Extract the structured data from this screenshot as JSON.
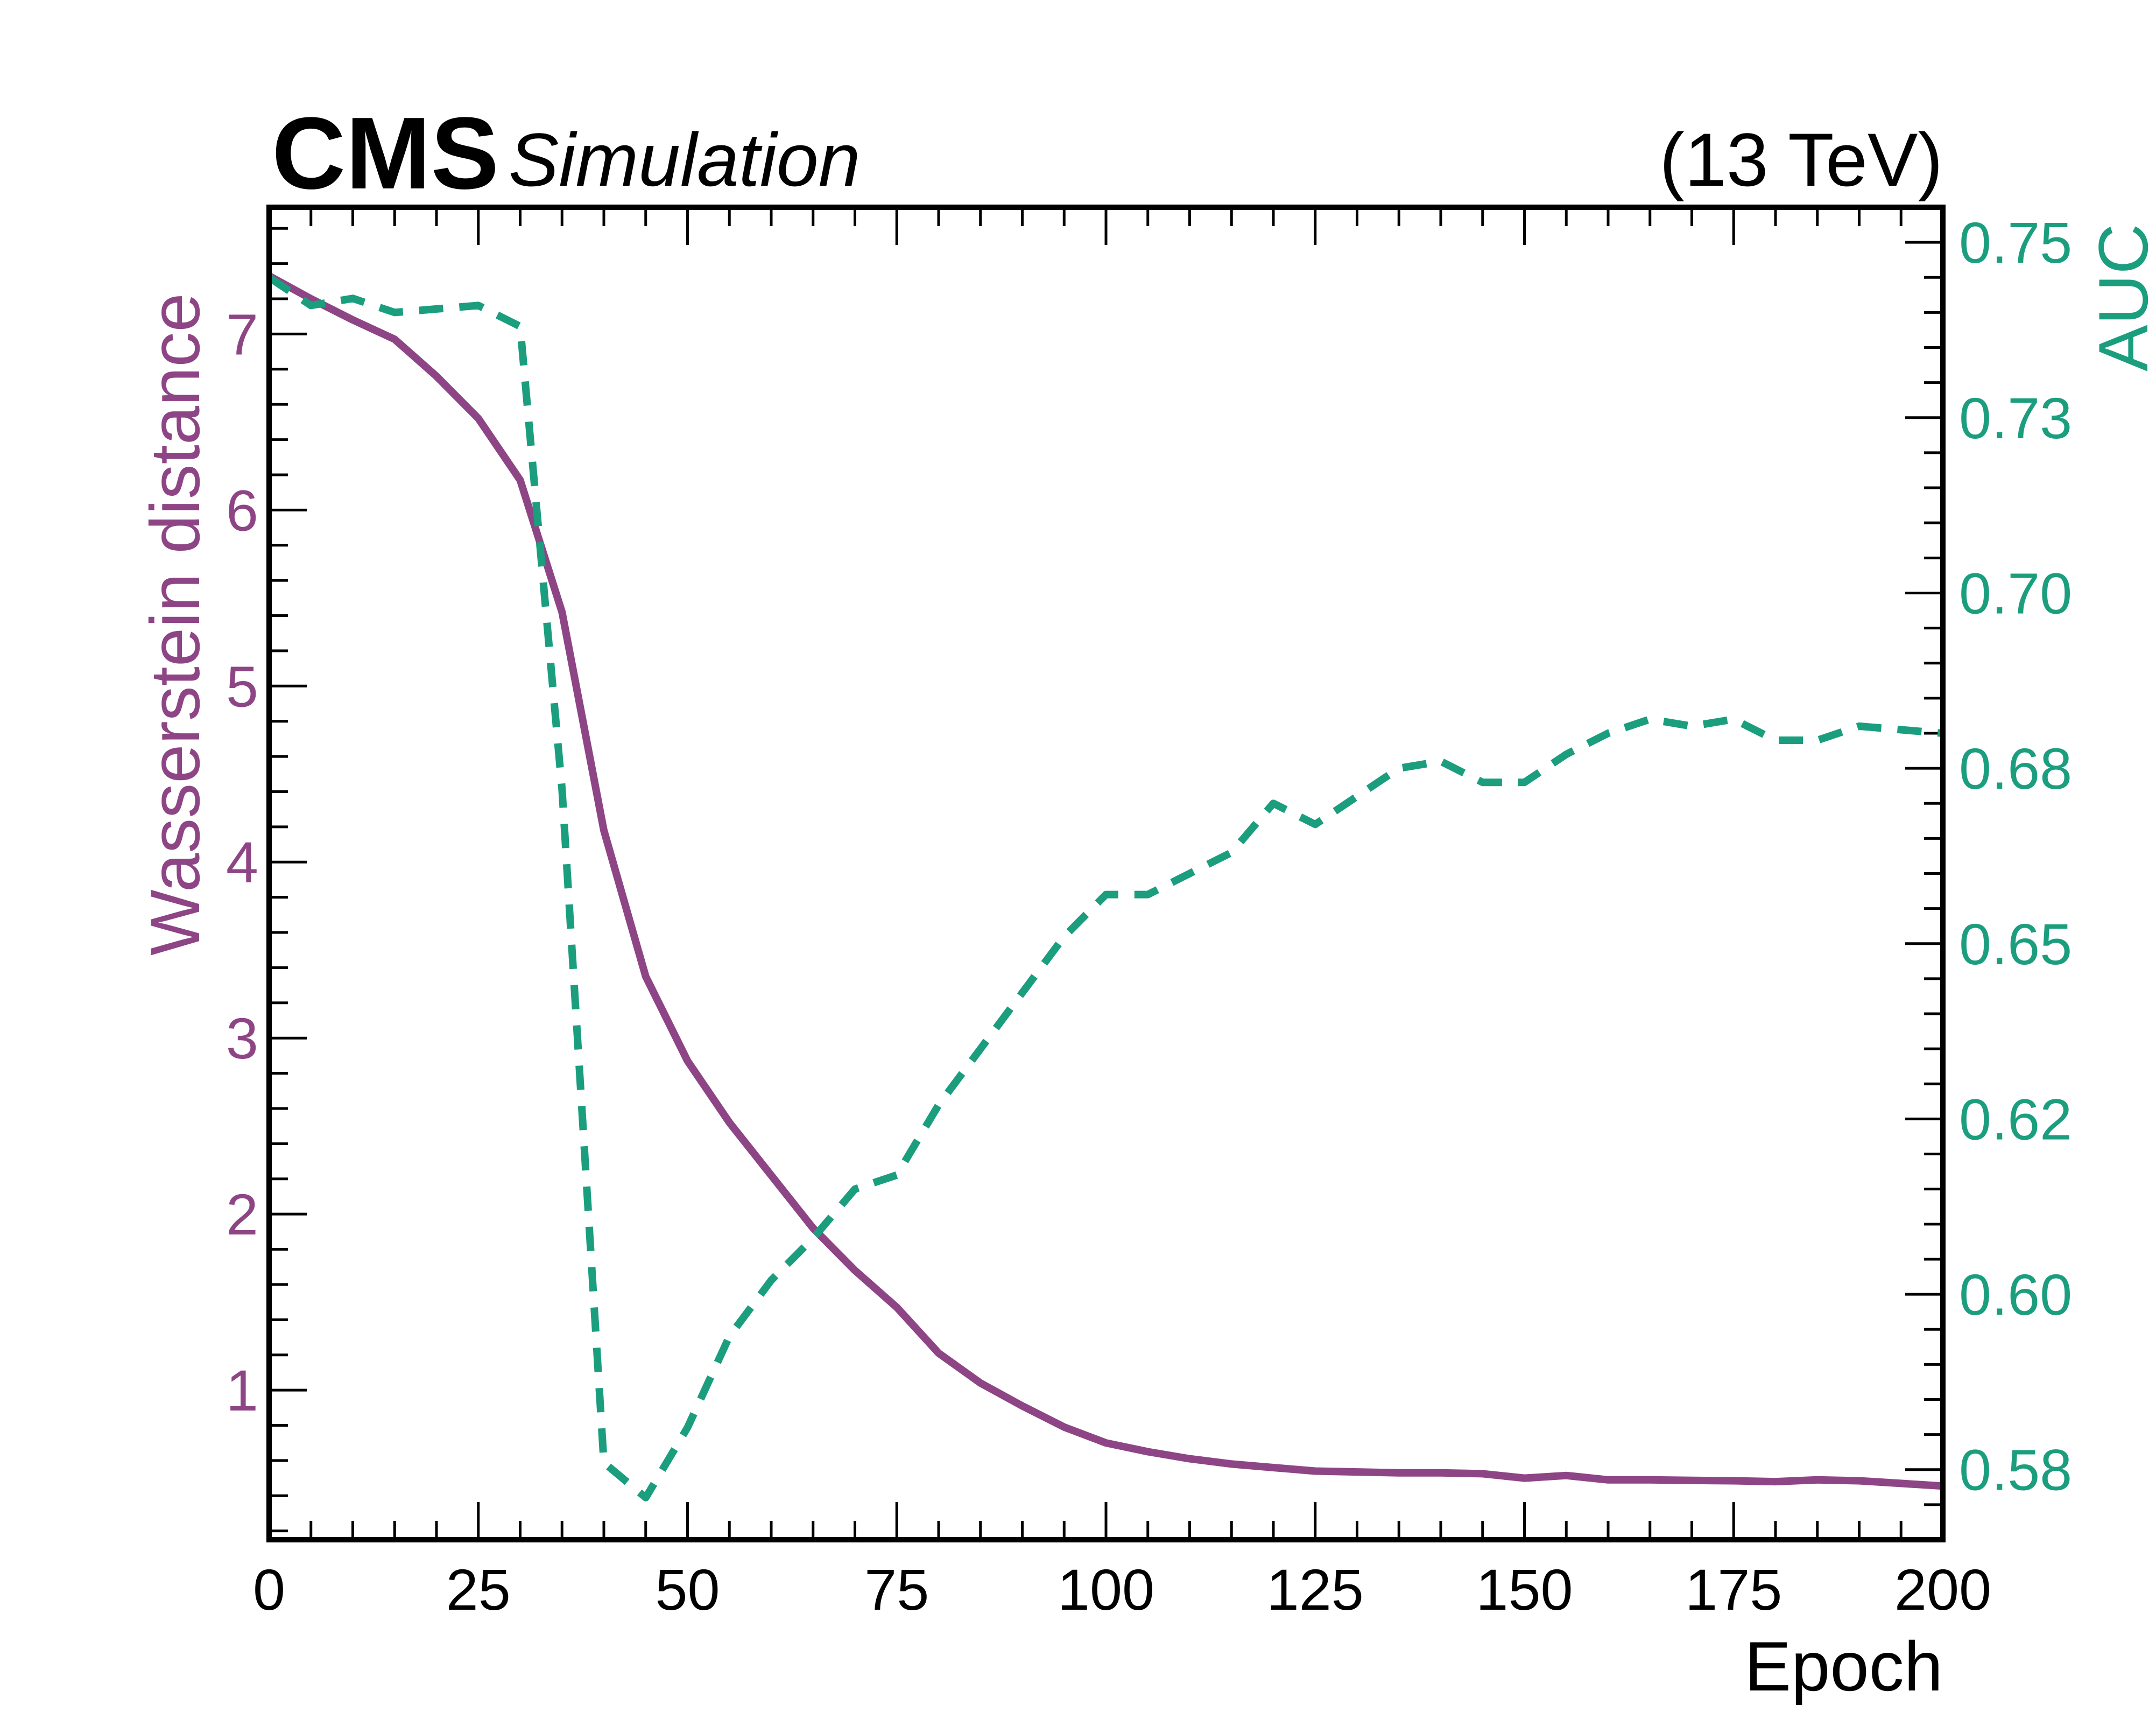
{
  "header": {
    "experiment": "CMS",
    "label": "Simulation",
    "energy": "(13 TeV)"
  },
  "colors": {
    "wasserstein": "#8e4585",
    "auc": "#1b9e7e",
    "axis": "#000000",
    "background": "#ffffff"
  },
  "chart_data": {
    "type": "line",
    "title": "",
    "xlabel": "Epoch",
    "ylabel_left": "Wasserstein distance",
    "ylabel_right": "AUC",
    "xlim": [
      0,
      200
    ],
    "ylim_left": [
      0.15,
      7.72
    ],
    "ylim_right": [
      0.565,
      0.755
    ],
    "x_ticks": [
      0,
      25,
      50,
      75,
      100,
      125,
      150,
      175,
      200
    ],
    "x_tick_labels": [
      "0",
      "25",
      "50",
      "75",
      "100",
      "125",
      "150",
      "175",
      "200"
    ],
    "y_left_ticks": [
      1,
      2,
      3,
      4,
      5,
      6,
      7
    ],
    "y_left_tick_labels": [
      "1",
      "2",
      "3",
      "4",
      "5",
      "6",
      "7"
    ],
    "y_right_ticks": [
      0.575,
      0.6,
      0.625,
      0.65,
      0.675,
      0.7,
      0.725,
      0.75
    ],
    "y_right_tick_labels": [
      "0.58",
      "0.60",
      "0.62",
      "0.65",
      "0.68",
      "0.70",
      "0.73",
      "0.75"
    ],
    "grid": false,
    "series": [
      {
        "name": "Wasserstein distance",
        "axis": "left",
        "style": "solid",
        "color": "#8e4585",
        "x": [
          0,
          5,
          10,
          15,
          20,
          25,
          30,
          35,
          40,
          45,
          50,
          55,
          60,
          65,
          70,
          75,
          80,
          85,
          90,
          95,
          100,
          105,
          110,
          115,
          120,
          125,
          130,
          135,
          140,
          145,
          150,
          155,
          160,
          165,
          170,
          175,
          180,
          185,
          190,
          195,
          200
        ],
        "values": [
          7.33,
          7.2,
          7.08,
          6.97,
          6.76,
          6.52,
          6.17,
          5.42,
          4.18,
          3.35,
          2.87,
          2.52,
          2.22,
          1.92,
          1.68,
          1.47,
          1.21,
          1.04,
          0.91,
          0.79,
          0.7,
          0.65,
          0.61,
          0.58,
          0.56,
          0.54,
          0.535,
          0.53,
          0.53,
          0.525,
          0.5,
          0.515,
          0.49,
          0.49,
          0.487,
          0.485,
          0.48,
          0.49,
          0.485,
          0.47,
          0.455
        ]
      },
      {
        "name": "AUC",
        "axis": "right",
        "style": "dashed",
        "color": "#1b9e7e",
        "x": [
          0,
          5,
          10,
          15,
          20,
          25,
          30,
          35,
          40,
          45,
          50,
          55,
          60,
          65,
          70,
          75,
          80,
          85,
          90,
          95,
          100,
          105,
          110,
          115,
          120,
          125,
          130,
          135,
          140,
          145,
          150,
          155,
          160,
          165,
          170,
          175,
          180,
          185,
          190,
          195,
          200
        ],
        "values": [
          0.745,
          0.741,
          0.742,
          0.74,
          0.7405,
          0.741,
          0.738,
          0.672,
          0.576,
          0.571,
          0.581,
          0.594,
          0.602,
          0.608,
          0.615,
          0.617,
          0.627,
          0.635,
          0.643,
          0.651,
          0.657,
          0.657,
          0.66,
          0.663,
          0.67,
          0.667,
          0.671,
          0.675,
          0.676,
          0.673,
          0.673,
          0.677,
          0.68,
          0.682,
          0.681,
          0.682,
          0.679,
          0.679,
          0.681,
          0.6805,
          0.68
        ]
      }
    ]
  }
}
